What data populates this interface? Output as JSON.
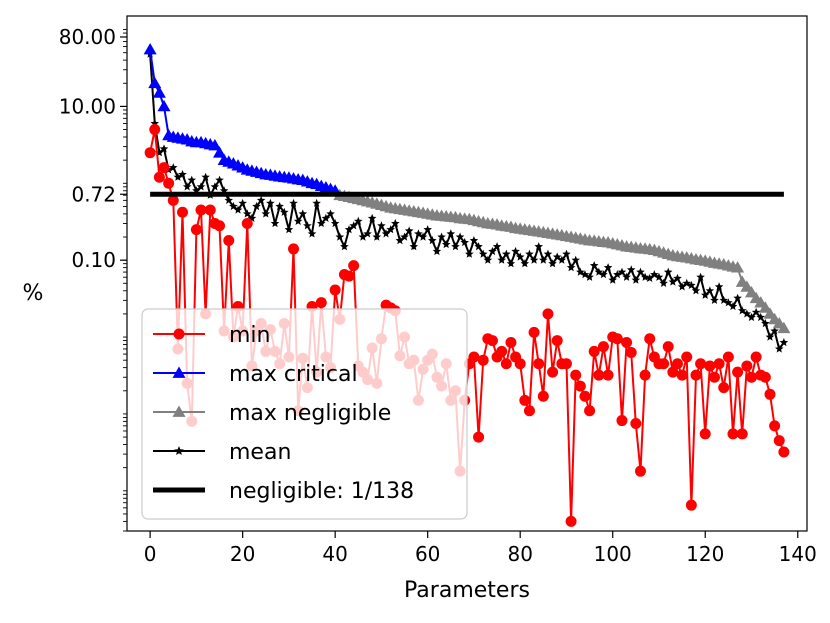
{
  "chart_data": {
    "type": "line",
    "title": "",
    "xlabel": "Parameters",
    "ylabel": "%",
    "yscale": "log",
    "xlim": [
      -5,
      142
    ],
    "ylim": [
      3e-05,
      150
    ],
    "xticks": [
      0,
      20,
      40,
      60,
      80,
      100,
      120,
      140
    ],
    "xtick_labels": [
      "0",
      "20",
      "40",
      "60",
      "80",
      "100",
      "120",
      "140"
    ],
    "yticks": [
      0.1,
      0.72,
      10.0,
      80.0
    ],
    "ytick_labels": [
      "0.10",
      "0.72",
      "10.00",
      "80.00"
    ],
    "grid": false,
    "legend_position": "lower-left",
    "series": [
      {
        "name": "min",
        "color": "#ff0000",
        "marker": "circle",
        "x": [
          0,
          1,
          2,
          3,
          4,
          5,
          6,
          7,
          8,
          9,
          10,
          11,
          12,
          13,
          14,
          15,
          16,
          17,
          18,
          19,
          20,
          21,
          22,
          23,
          24,
          25,
          26,
          27,
          28,
          29,
          30,
          31,
          32,
          33,
          34,
          35,
          36,
          37,
          38,
          39,
          40,
          41,
          42,
          43,
          44,
          45,
          46,
          47,
          48,
          49,
          50,
          51,
          52,
          53,
          54,
          55,
          56,
          57,
          58,
          59,
          60,
          61,
          62,
          63,
          64,
          65,
          66,
          67,
          68,
          69,
          70,
          71,
          72,
          73,
          74,
          75,
          76,
          77,
          78,
          79,
          80,
          81,
          82,
          83,
          84,
          85,
          86,
          87,
          88,
          89,
          90,
          91,
          92,
          93,
          94,
          95,
          96,
          97,
          98,
          99,
          100,
          101,
          102,
          103,
          104,
          105,
          106,
          107,
          108,
          109,
          110,
          111,
          112,
          113,
          114,
          115,
          116,
          117,
          118,
          119,
          120,
          121,
          122,
          123,
          124,
          125,
          126,
          127,
          128,
          129,
          130,
          131,
          132,
          133,
          134,
          135,
          136,
          137
        ],
        "values": [
          2.5,
          5.0,
          1.2,
          1.6,
          1.0,
          0.6,
          0.007,
          0.42,
          0.0025,
          0.0008,
          0.25,
          0.45,
          0.02,
          0.45,
          0.3,
          0.28,
          0.012,
          0.18,
          0.01,
          0.025,
          0.012,
          0.3,
          0.0042,
          0.012,
          0.015,
          0.0065,
          0.0125,
          0.0065,
          0.0045,
          0.015,
          0.0055,
          0.14,
          0.0011,
          0.0053,
          0.0022,
          0.025,
          0.0035,
          0.028,
          0.0055,
          0.004,
          0.041,
          0.017,
          0.065,
          0.062,
          0.085,
          0.0042,
          0.0035,
          0.0028,
          0.0072,
          0.0025,
          0.0095,
          0.026,
          0.024,
          0.022,
          0.0057,
          0.01,
          0.0045,
          0.005,
          0.0015,
          0.0038,
          0.005,
          0.006,
          0.003,
          0.0023,
          0.0045,
          0.0015,
          0.002,
          0.00018,
          0.0015,
          0.0045,
          0.0055,
          0.0005,
          0.005,
          0.0095,
          0.009,
          0.0055,
          0.0065,
          0.0045,
          0.0085,
          0.0055,
          0.0045,
          0.0015,
          0.0011,
          0.0115,
          0.0045,
          0.0017,
          0.02,
          0.0035,
          0.009,
          0.0045,
          0.0045,
          4e-05,
          0.0032,
          0.0023,
          0.0017,
          0.0011,
          0.0065,
          0.0032,
          0.0075,
          0.0032,
          0.01,
          0.0095,
          0.00082,
          0.0085,
          0.0063,
          0.00075,
          0.00018,
          0.0032,
          0.0095,
          0.0055,
          0.0045,
          0.0045,
          0.0075,
          0.0035,
          0.0045,
          0.0032,
          0.0055,
          6.5e-05,
          0.0032,
          0.0045,
          0.00055,
          0.0042,
          0.003,
          0.0045,
          0.0022,
          0.0055,
          0.00055,
          0.0035,
          0.00055,
          0.0042,
          0.003,
          0.0055,
          0.0032,
          0.003,
          0.0018,
          0.0007,
          0.00045,
          0.00032
        ]
      },
      {
        "name": "max critical",
        "color": "#0000ff",
        "marker": "triangle",
        "x": [
          0,
          1,
          2,
          3,
          4,
          5,
          6,
          7,
          8,
          9,
          10,
          11,
          12,
          13,
          14,
          15,
          16,
          17,
          18,
          19,
          20,
          21,
          22,
          23,
          24,
          25,
          26,
          27,
          28,
          29,
          30,
          31,
          32,
          33,
          34,
          35,
          36,
          37,
          38,
          39,
          40
        ],
        "values": [
          55,
          20,
          15,
          10,
          4.2,
          4.0,
          3.9,
          3.8,
          3.7,
          3.5,
          3.4,
          3.4,
          3.3,
          3.2,
          3.1,
          2.5,
          2.0,
          1.9,
          1.8,
          1.7,
          1.6,
          1.5,
          1.45,
          1.4,
          1.35,
          1.3,
          1.28,
          1.25,
          1.22,
          1.2,
          1.18,
          1.15,
          1.12,
          1.1,
          1.05,
          1.0,
          0.97,
          0.92,
          0.88,
          0.84,
          0.8
        ]
      },
      {
        "name": "max negligible",
        "color": "#808080",
        "marker": "triangle",
        "x": [
          41,
          42,
          43,
          44,
          45,
          46,
          47,
          48,
          49,
          50,
          51,
          52,
          53,
          54,
          55,
          56,
          57,
          58,
          59,
          60,
          61,
          62,
          63,
          64,
          65,
          66,
          67,
          68,
          69,
          70,
          71,
          72,
          73,
          74,
          75,
          76,
          77,
          78,
          79,
          80,
          81,
          82,
          83,
          84,
          85,
          86,
          87,
          88,
          89,
          90,
          91,
          92,
          93,
          94,
          95,
          96,
          97,
          98,
          99,
          100,
          101,
          102,
          103,
          104,
          105,
          106,
          107,
          108,
          109,
          110,
          111,
          112,
          113,
          114,
          115,
          116,
          117,
          118,
          119,
          120,
          121,
          122,
          123,
          124,
          125,
          126,
          127,
          128,
          129,
          130,
          131,
          132,
          133,
          134,
          135,
          136,
          137
        ],
        "values": [
          0.7,
          0.68,
          0.66,
          0.64,
          0.62,
          0.6,
          0.58,
          0.56,
          0.54,
          0.52,
          0.5,
          0.48,
          0.47,
          0.46,
          0.45,
          0.44,
          0.43,
          0.42,
          0.41,
          0.4,
          0.39,
          0.38,
          0.375,
          0.37,
          0.365,
          0.36,
          0.35,
          0.345,
          0.34,
          0.33,
          0.32,
          0.31,
          0.3,
          0.295,
          0.29,
          0.28,
          0.275,
          0.27,
          0.26,
          0.255,
          0.25,
          0.245,
          0.24,
          0.235,
          0.23,
          0.225,
          0.22,
          0.215,
          0.21,
          0.205,
          0.2,
          0.195,
          0.19,
          0.185,
          0.18,
          0.178,
          0.175,
          0.172,
          0.17,
          0.165,
          0.16,
          0.155,
          0.15,
          0.148,
          0.145,
          0.142,
          0.14,
          0.138,
          0.135,
          0.13,
          0.125,
          0.12,
          0.115,
          0.112,
          0.11,
          0.108,
          0.105,
          0.102,
          0.1,
          0.098,
          0.095,
          0.092,
          0.09,
          0.088,
          0.085,
          0.082,
          0.08,
          0.052,
          0.045,
          0.038,
          0.032,
          0.028,
          0.024,
          0.02,
          0.017,
          0.015,
          0.013
        ]
      },
      {
        "name": "mean",
        "color": "#000000",
        "marker": "star",
        "x": [
          0,
          1,
          2,
          3,
          4,
          5,
          6,
          7,
          8,
          9,
          10,
          11,
          12,
          13,
          14,
          15,
          16,
          17,
          18,
          19,
          20,
          21,
          22,
          23,
          24,
          25,
          26,
          27,
          28,
          29,
          30,
          31,
          32,
          33,
          34,
          35,
          36,
          37,
          38,
          39,
          40,
          41,
          42,
          43,
          44,
          45,
          46,
          47,
          48,
          49,
          50,
          51,
          52,
          53,
          54,
          55,
          56,
          57,
          58,
          59,
          60,
          61,
          62,
          63,
          64,
          65,
          66,
          67,
          68,
          69,
          70,
          71,
          72,
          73,
          74,
          75,
          76,
          77,
          78,
          79,
          80,
          81,
          82,
          83,
          84,
          85,
          86,
          87,
          88,
          89,
          90,
          91,
          92,
          93,
          94,
          95,
          96,
          97,
          98,
          99,
          100,
          101,
          102,
          103,
          104,
          105,
          106,
          107,
          108,
          109,
          110,
          111,
          112,
          113,
          114,
          115,
          116,
          117,
          118,
          119,
          120,
          121,
          122,
          123,
          124,
          125,
          126,
          127,
          128,
          129,
          130,
          131,
          132,
          133,
          134,
          135,
          136,
          137
        ],
        "values": [
          48,
          6.0,
          2.5,
          2.8,
          1.5,
          1.6,
          1.2,
          1.3,
          0.9,
          1.1,
          0.8,
          0.9,
          1.2,
          0.7,
          0.9,
          1.1,
          0.8,
          0.6,
          0.5,
          0.45,
          0.55,
          0.4,
          0.35,
          0.5,
          0.6,
          0.4,
          0.55,
          0.3,
          0.5,
          0.42,
          0.25,
          0.55,
          0.32,
          0.4,
          0.28,
          0.22,
          0.55,
          0.3,
          0.35,
          0.4,
          0.3,
          0.2,
          0.15,
          0.25,
          0.28,
          0.32,
          0.2,
          0.22,
          0.35,
          0.2,
          0.28,
          0.22,
          0.25,
          0.3,
          0.18,
          0.2,
          0.24,
          0.15,
          0.22,
          0.2,
          0.25,
          0.18,
          0.13,
          0.2,
          0.16,
          0.22,
          0.15,
          0.2,
          0.17,
          0.12,
          0.18,
          0.15,
          0.12,
          0.1,
          0.13,
          0.15,
          0.1,
          0.12,
          0.09,
          0.13,
          0.11,
          0.09,
          0.12,
          0.1,
          0.15,
          0.1,
          0.12,
          0.09,
          0.11,
          0.1,
          0.12,
          0.08,
          0.1,
          0.07,
          0.065,
          0.06,
          0.085,
          0.07,
          0.065,
          0.08,
          0.055,
          0.065,
          0.07,
          0.06,
          0.075,
          0.055,
          0.07,
          0.06,
          0.058,
          0.065,
          0.06,
          0.05,
          0.07,
          0.052,
          0.058,
          0.045,
          0.05,
          0.047,
          0.04,
          0.06,
          0.035,
          0.04,
          0.03,
          0.045,
          0.03,
          0.028,
          0.025,
          0.032,
          0.022,
          0.02,
          0.018,
          0.021,
          0.018,
          0.015,
          0.01,
          0.012,
          0.007,
          0.0085
        ]
      },
      {
        "name": "negligible: 1/138",
        "color": "#000000",
        "marker": "none",
        "x": [
          0,
          137
        ],
        "values": [
          0.72,
          0.72
        ]
      }
    ],
    "legend": [
      "min",
      "max critical",
      "max negligible",
      "mean",
      "negligible: 1/138"
    ]
  }
}
